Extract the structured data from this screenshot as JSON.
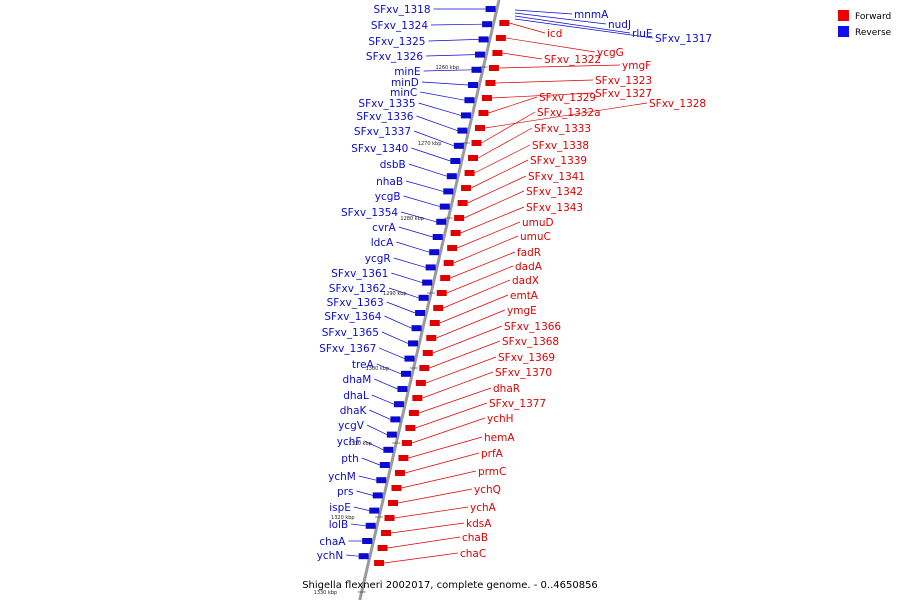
{
  "caption": "Shigella flexneri 2002017, complete genome. - 0..4650856",
  "legend": [
    {
      "label": "Forward",
      "color": "#ee0000"
    },
    {
      "label": "Reverse",
      "color": "#1010ee"
    }
  ],
  "colors": {
    "forward": "#e00000",
    "reverse": "#0a0ad0",
    "backbone": "#9a9a9a"
  },
  "kbp_labels": [
    "1260 kbp",
    "1270 kbp",
    "1280 kbp",
    "1290 kbp",
    "1300 kbp",
    "1310 kbp",
    "1320 kbp",
    "1330 kbp"
  ],
  "reverse_genes": [
    "SFxv_1318",
    "SFxv_1324",
    "SFxv_1325",
    "SFxv_1326",
    "minE",
    "minD",
    "minC",
    "SFxv_1335",
    "SFxv_1336",
    "SFxv_1337",
    "SFxv_1340",
    "dsbB",
    "nhaB",
    "ycgB",
    "SFxv_1354",
    "cvrA",
    "ldcA",
    "ycgR",
    "SFxv_1361",
    "SFxv_1362",
    "SFxv_1363",
    "SFxv_1364",
    "SFxv_1365",
    "SFxv_1367",
    "treA",
    "dhaM",
    "dhaL",
    "dhaK",
    "ycgV",
    "ychF",
    "pth",
    "ychM",
    "prs",
    "ispE",
    "lolB",
    "chaA",
    "ychN"
  ],
  "reverse_top_genes": [
    "mnmA",
    "nudJ",
    "rluE",
    "SFxv_1317"
  ],
  "forward_genes": [
    "icd",
    "ycgG",
    "SFxv_1322",
    "ymgF",
    "SFxv_1323",
    "SFxv_1327",
    "SFxv_1329",
    "SFxv_1328",
    "SFxv_1332a",
    "SFxv_1333",
    "SFxv_1338",
    "SFxv_1339",
    "SFxv_1341",
    "SFxv_1342",
    "SFxv_1343",
    "umuD",
    "umuC",
    "fadR",
    "dadA",
    "dadX",
    "emtA",
    "ymgE",
    "SFxv_1366",
    "SFxv_1368",
    "SFxv_1369",
    "SFxv_1370",
    "dhaR",
    "SFxv_1377",
    "ychH",
    "hemA",
    "prfA",
    "prmC",
    "ychQ",
    "ychA",
    "kdsA",
    "chaB",
    "chaC"
  ]
}
